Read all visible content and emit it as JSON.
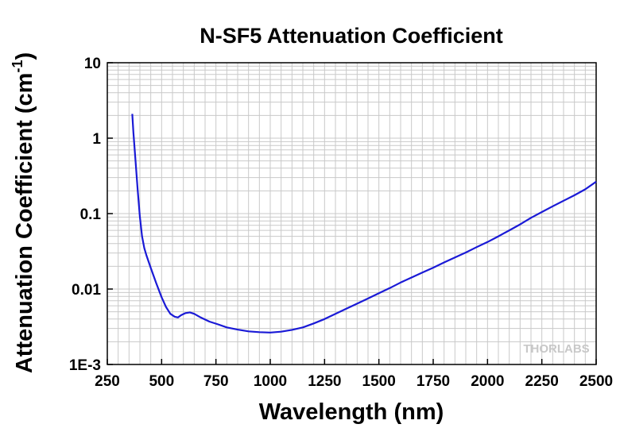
{
  "chart_data": {
    "type": "line",
    "title": "N-SF5 Attenuation Coefficient",
    "xlabel": "Wavelength (nm)",
    "ylabel_main": "Attenuation Coefficient (cm",
    "ylabel_sup": "-1",
    "ylabel_close": ")",
    "xlim": [
      250,
      2500
    ],
    "ylim": [
      0.001,
      10
    ],
    "yscale": "log",
    "grid": true,
    "x_ticks": [
      250,
      500,
      750,
      1000,
      1250,
      1500,
      1750,
      2000,
      2250,
      2500
    ],
    "x_tick_labels": [
      "250",
      "500",
      "750",
      "1000",
      "1250",
      "1500",
      "1750",
      "2000",
      "2250",
      "2500"
    ],
    "y_ticks": [
      0.001,
      0.01,
      0.1,
      1,
      10
    ],
    "y_tick_labels": [
      "1E-3",
      "0.01",
      "0.1",
      "1",
      "10"
    ],
    "series_color": "#1a1ad6",
    "watermark": "THORLABS",
    "series": [
      {
        "x": [
          365,
          370,
          380,
          390,
          400,
          410,
          420,
          430,
          450,
          475,
          500,
          520,
          540,
          560,
          575,
          590,
          610,
          630,
          650,
          680,
          720,
          760,
          800,
          850,
          900,
          950,
          1000,
          1050,
          1100,
          1150,
          1200,
          1250,
          1300,
          1350,
          1400,
          1450,
          1500,
          1550,
          1600,
          1650,
          1700,
          1750,
          1800,
          1850,
          1900,
          1950,
          2000,
          2050,
          2100,
          2150,
          2200,
          2250,
          2300,
          2350,
          2400,
          2450,
          2500
        ],
        "y": [
          2.1,
          1.2,
          0.5,
          0.2,
          0.09,
          0.05,
          0.035,
          0.028,
          0.019,
          0.012,
          0.0078,
          0.0058,
          0.0047,
          0.0043,
          0.0042,
          0.0045,
          0.0048,
          0.0049,
          0.0047,
          0.0042,
          0.0037,
          0.0034,
          0.0031,
          0.0029,
          0.00275,
          0.00268,
          0.00265,
          0.00272,
          0.00288,
          0.0031,
          0.0035,
          0.004,
          0.0047,
          0.0055,
          0.0064,
          0.0075,
          0.0088,
          0.0103,
          0.0122,
          0.0142,
          0.0165,
          0.0192,
          0.0225,
          0.0262,
          0.0305,
          0.036,
          0.042,
          0.05,
          0.06,
          0.072,
          0.088,
          0.105,
          0.125,
          0.148,
          0.175,
          0.21,
          0.265
        ]
      }
    ]
  }
}
